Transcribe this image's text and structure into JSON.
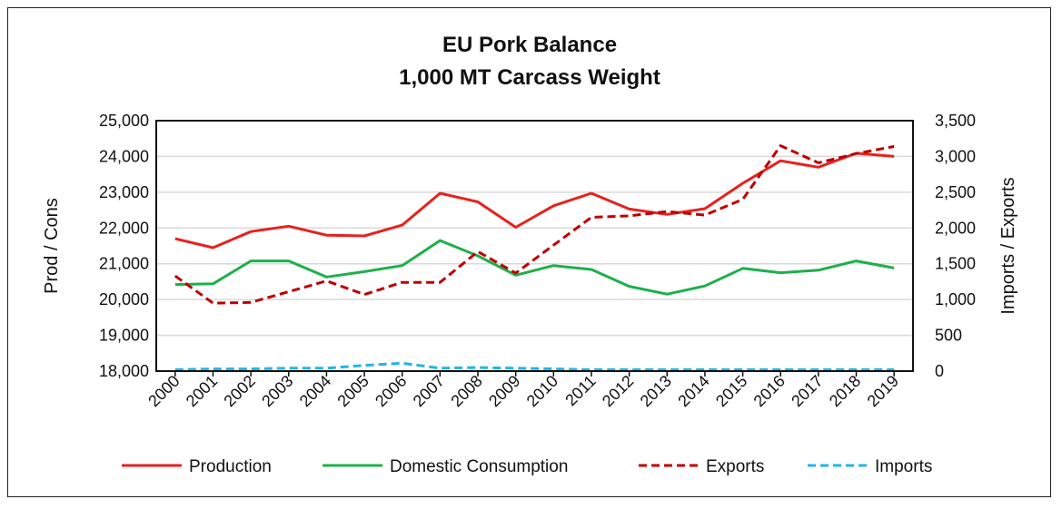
{
  "chart_data": {
    "type": "line",
    "title": "EU Pork Balance",
    "subtitle": "1,000 MT Carcass Weight",
    "ylabel": "Prod / Cons",
    "y2label": "Imports / Exports",
    "ylim": [
      18000,
      25000
    ],
    "y2lim": [
      0,
      3500
    ],
    "yticks": [
      "18,000",
      "19,000",
      "20,000",
      "21,000",
      "22,000",
      "23,000",
      "24,000",
      "25,000"
    ],
    "y2ticks": [
      "0",
      "500",
      "1,000",
      "1,500",
      "2,000",
      "2,500",
      "3,000",
      "3,500"
    ],
    "grid": true,
    "legend_position": "bottom",
    "x": [
      "2000",
      "2001",
      "2002",
      "2003",
      "2004",
      "2005",
      "2006",
      "2007",
      "2008",
      "2009",
      "2010",
      "2011",
      "2012",
      "2013",
      "2014",
      "2015",
      "2016",
      "2017",
      "2018",
      "2019"
    ],
    "series": [
      {
        "name": "Production",
        "axis": "left",
        "color": "#e8211e",
        "dash": "solid",
        "values": [
          21700,
          21450,
          21900,
          22050,
          21800,
          21780,
          22080,
          22970,
          22730,
          22020,
          22620,
          22970,
          22530,
          22380,
          22540,
          23250,
          23880,
          23700,
          24090,
          24000
        ]
      },
      {
        "name": "Domestic Consumption",
        "axis": "left",
        "color": "#1db04b",
        "dash": "solid",
        "values": [
          20420,
          20440,
          21080,
          21080,
          20630,
          20780,
          20950,
          21650,
          21220,
          20680,
          20950,
          20840,
          20370,
          20150,
          20380,
          20870,
          20750,
          20820,
          21080,
          20880
        ]
      },
      {
        "name": "Exports",
        "axis": "right",
        "color": "#c00000",
        "dash": "dashed",
        "values": [
          1330,
          950,
          960,
          1110,
          1260,
          1070,
          1240,
          1240,
          1670,
          1370,
          1760,
          2150,
          2170,
          2230,
          2180,
          2400,
          3150,
          2910,
          3040,
          3140
        ]
      },
      {
        "name": "Imports",
        "axis": "right",
        "color": "#22b4e6",
        "dash": "dashed",
        "values": [
          20,
          30,
          30,
          40,
          40,
          80,
          110,
          40,
          50,
          40,
          30,
          20,
          20,
          20,
          20,
          20,
          20,
          20,
          20,
          20
        ]
      }
    ]
  }
}
